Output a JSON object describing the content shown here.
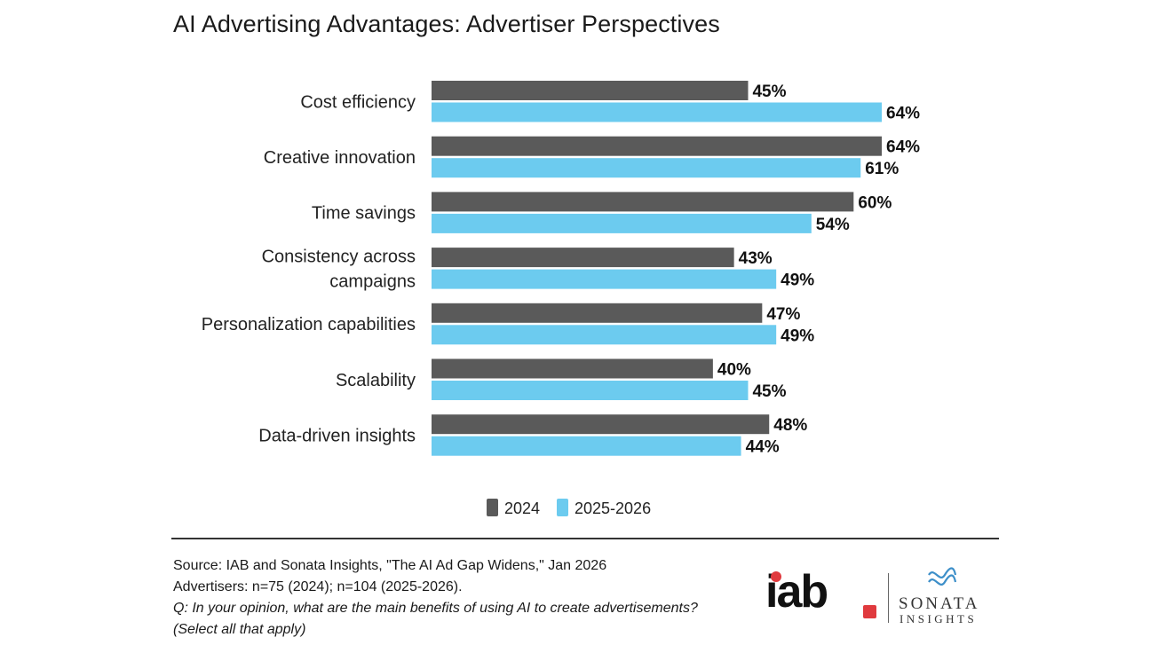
{
  "chart_data": {
    "type": "bar",
    "orientation": "horizontal",
    "title": "AI Advertising Advantages: Advertiser Perspectives",
    "categories": [
      [
        "Cost efficiency"
      ],
      [
        "Creative innovation"
      ],
      [
        "Time savings"
      ],
      [
        "Consistency across",
        "campaigns"
      ],
      [
        "Personalization capabilities"
      ],
      [
        "Scalability"
      ],
      [
        "Data-driven insights"
      ]
    ],
    "series": [
      {
        "name": "2024",
        "color": "#5a5a5a",
        "values": [
          45,
          64,
          60,
          43,
          47,
          40,
          48
        ]
      },
      {
        "name": "2025-2026",
        "color": "#6ccbef",
        "values": [
          64,
          61,
          54,
          49,
          49,
          45,
          44
        ]
      }
    ],
    "value_suffix": "%",
    "xlim": [
      0,
      64
    ],
    "grid": false,
    "legend_position": "bottom-center"
  },
  "footer": {
    "source": "Source: IAB and Sonata Insights, \"The AI Ad Gap Widens,\" Jan 2026",
    "sample": "Advertisers: n=75 (2024); n=104 (2025-2026).",
    "question": "Q: In your opinion, what are the main benefits of using AI to create advertisements? (Select all that apply)"
  },
  "logos": {
    "iab": "iab",
    "sonata_word": "SONATA",
    "sonata_sub": "INSIGHTS"
  }
}
